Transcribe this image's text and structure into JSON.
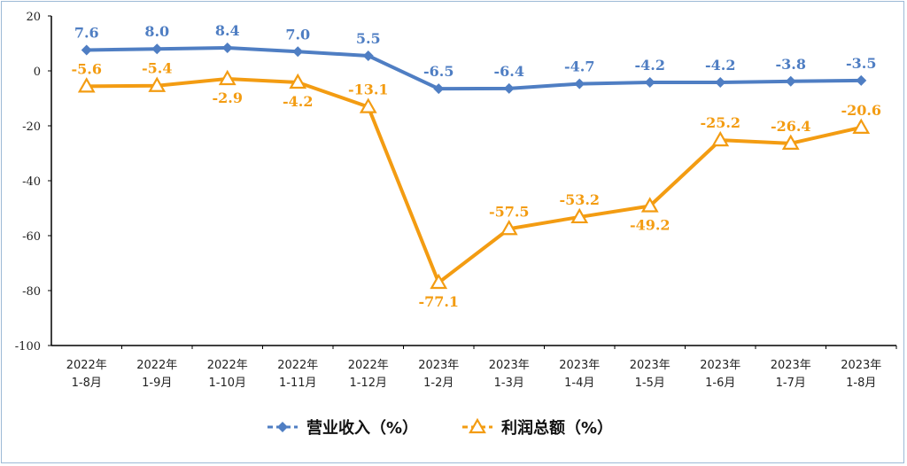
{
  "chart_data": {
    "type": "line",
    "categories": [
      [
        "2022年",
        "1-8月"
      ],
      [
        "2022年",
        "1-9月"
      ],
      [
        "2022年",
        "1-10月"
      ],
      [
        "2022年",
        "1-11月"
      ],
      [
        "2022年",
        "1-12月"
      ],
      [
        "2023年",
        "1-2月"
      ],
      [
        "2023年",
        "1-3月"
      ],
      [
        "2023年",
        "1-4月"
      ],
      [
        "2023年",
        "1-5月"
      ],
      [
        "2023年",
        "1-6月"
      ],
      [
        "2023年",
        "1-7月"
      ],
      [
        "2023年",
        "1-8月"
      ]
    ],
    "ylim": [
      -100,
      20
    ],
    "yticks": [
      20,
      0,
      -20,
      -40,
      -60,
      -80,
      -100
    ],
    "grid": false,
    "legend_position": "bottom",
    "series": [
      {
        "name": "营业收入（%）",
        "color": "#4f7ec3",
        "marker": "diamond",
        "values": [
          7.6,
          8.0,
          8.4,
          7.0,
          5.5,
          -6.5,
          -6.4,
          -4.7,
          -4.2,
          -4.2,
          -3.8,
          -3.5
        ],
        "labels": [
          "7.6",
          "8.0",
          "8.4",
          "7.0",
          "5.5",
          "-6.5",
          "-6.4",
          "-4.7",
          "-4.2",
          "-4.2",
          "-3.8",
          "-3.5"
        ],
        "label_position": "above"
      },
      {
        "name": "利润总额（%）",
        "color": "#f39c12",
        "marker": "triangle",
        "values": [
          -5.6,
          -5.4,
          -2.9,
          -4.2,
          -13.1,
          -77.1,
          -57.5,
          -53.2,
          -49.2,
          -25.2,
          -26.4,
          -20.6
        ],
        "labels": [
          "-5.6",
          "-5.4",
          "-2.9",
          "-4.2",
          "-13.1",
          "-77.1",
          "-57.5",
          "-53.2",
          "-49.2",
          "-25.2",
          "-26.4",
          "-20.6"
        ],
        "label_position": [
          "above",
          "above",
          "below",
          "below",
          "above",
          "below",
          "above",
          "above",
          "below",
          "above",
          "above",
          "above"
        ]
      }
    ]
  }
}
